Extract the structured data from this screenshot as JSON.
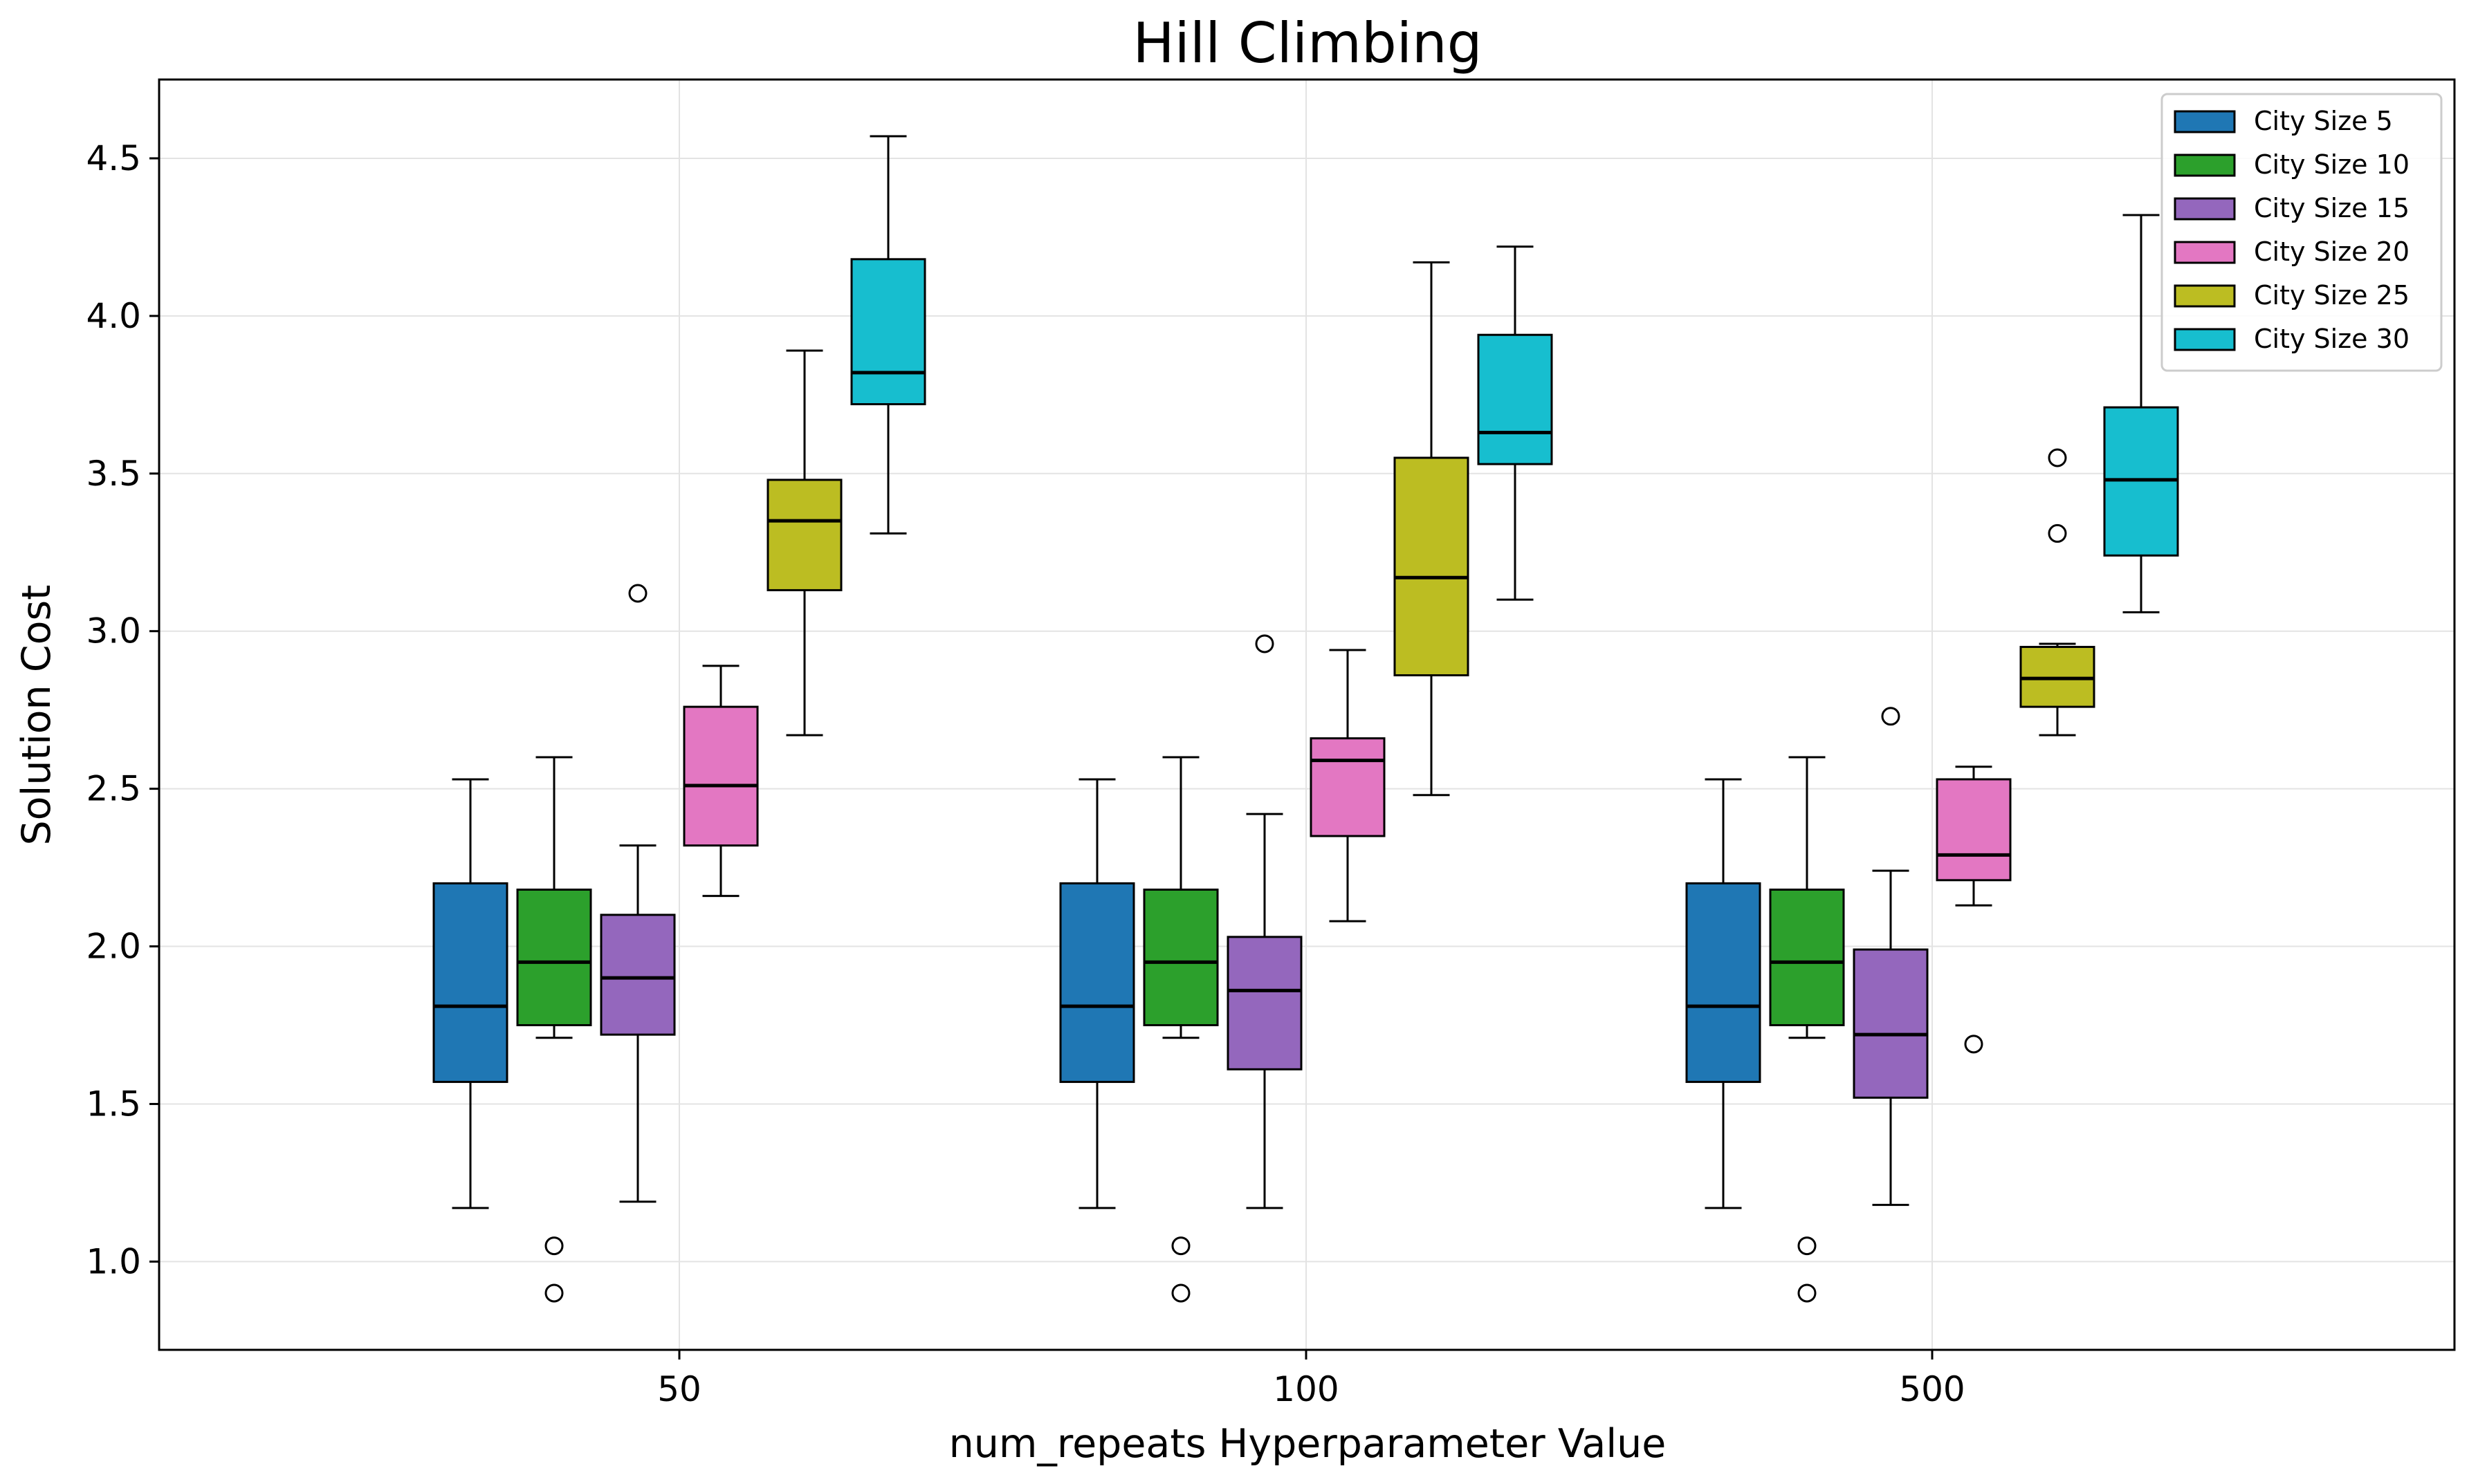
{
  "chart_data": {
    "type": "box",
    "title": "Hill Climbing",
    "xlabel": "num_repeats Hyperparameter Value",
    "ylabel": "Solution Cost",
    "categories": [
      "50",
      "100",
      "500"
    ],
    "ylim": [
      0.72,
      4.75
    ],
    "yticks": [
      "1.0",
      "1.5",
      "2.0",
      "2.5",
      "3.0",
      "3.5",
      "4.0",
      "4.5"
    ],
    "grid": true,
    "legend_position": "top-right",
    "series": [
      {
        "name": "City Size 5",
        "color": "#1f77b4",
        "boxes": [
          {
            "whisker_low": 1.17,
            "q1": 1.57,
            "median": 1.81,
            "q3": 2.2,
            "whisker_high": 2.53,
            "outliers": []
          },
          {
            "whisker_low": 1.17,
            "q1": 1.57,
            "median": 1.81,
            "q3": 2.2,
            "whisker_high": 2.53,
            "outliers": []
          },
          {
            "whisker_low": 1.17,
            "q1": 1.57,
            "median": 1.81,
            "q3": 2.2,
            "whisker_high": 2.53,
            "outliers": []
          }
        ]
      },
      {
        "name": "City Size 10",
        "color": "#2ca02c",
        "boxes": [
          {
            "whisker_low": 1.71,
            "q1": 1.75,
            "median": 1.95,
            "q3": 2.18,
            "whisker_high": 2.6,
            "outliers": [
              1.05,
              0.9
            ]
          },
          {
            "whisker_low": 1.71,
            "q1": 1.75,
            "median": 1.95,
            "q3": 2.18,
            "whisker_high": 2.6,
            "outliers": [
              1.05,
              0.9
            ]
          },
          {
            "whisker_low": 1.71,
            "q1": 1.75,
            "median": 1.95,
            "q3": 2.18,
            "whisker_high": 2.6,
            "outliers": [
              1.05,
              0.9
            ]
          }
        ]
      },
      {
        "name": "City Size 15",
        "color": "#9467bd",
        "boxes": [
          {
            "whisker_low": 1.19,
            "q1": 1.72,
            "median": 1.9,
            "q3": 2.1,
            "whisker_high": 2.32,
            "outliers": [
              3.12
            ]
          },
          {
            "whisker_low": 1.17,
            "q1": 1.61,
            "median": 1.86,
            "q3": 2.03,
            "whisker_high": 2.42,
            "outliers": [
              2.96
            ]
          },
          {
            "whisker_low": 1.18,
            "q1": 1.52,
            "median": 1.72,
            "q3": 1.99,
            "whisker_high": 2.24,
            "outliers": [
              2.73
            ]
          }
        ]
      },
      {
        "name": "City Size 20",
        "color": "#e377c2",
        "boxes": [
          {
            "whisker_low": 2.16,
            "q1": 2.32,
            "median": 2.51,
            "q3": 2.76,
            "whisker_high": 2.89,
            "outliers": []
          },
          {
            "whisker_low": 2.08,
            "q1": 2.35,
            "median": 2.59,
            "q3": 2.66,
            "whisker_high": 2.94,
            "outliers": []
          },
          {
            "whisker_low": 2.13,
            "q1": 2.21,
            "median": 2.29,
            "q3": 2.53,
            "whisker_high": 2.57,
            "outliers": [
              1.69
            ]
          }
        ]
      },
      {
        "name": "City Size 25",
        "color": "#bcbd22",
        "boxes": [
          {
            "whisker_low": 2.67,
            "q1": 3.13,
            "median": 3.35,
            "q3": 3.48,
            "whisker_high": 3.89,
            "outliers": []
          },
          {
            "whisker_low": 2.48,
            "q1": 2.86,
            "median": 3.17,
            "q3": 3.55,
            "whisker_high": 4.17,
            "outliers": []
          },
          {
            "whisker_low": 2.67,
            "q1": 2.76,
            "median": 2.85,
            "q3": 2.95,
            "whisker_high": 2.96,
            "outliers": [
              3.55,
              3.31
            ]
          }
        ]
      },
      {
        "name": "City Size 30",
        "color": "#17becf",
        "boxes": [
          {
            "whisker_low": 3.31,
            "q1": 3.72,
            "median": 3.82,
            "q3": 4.18,
            "whisker_high": 4.57,
            "outliers": []
          },
          {
            "whisker_low": 3.1,
            "q1": 3.53,
            "median": 3.63,
            "q3": 3.94,
            "whisker_high": 4.22,
            "outliers": []
          },
          {
            "whisker_low": 3.06,
            "q1": 3.24,
            "median": 3.48,
            "q3": 3.71,
            "whisker_high": 4.32,
            "outliers": []
          }
        ]
      }
    ]
  }
}
